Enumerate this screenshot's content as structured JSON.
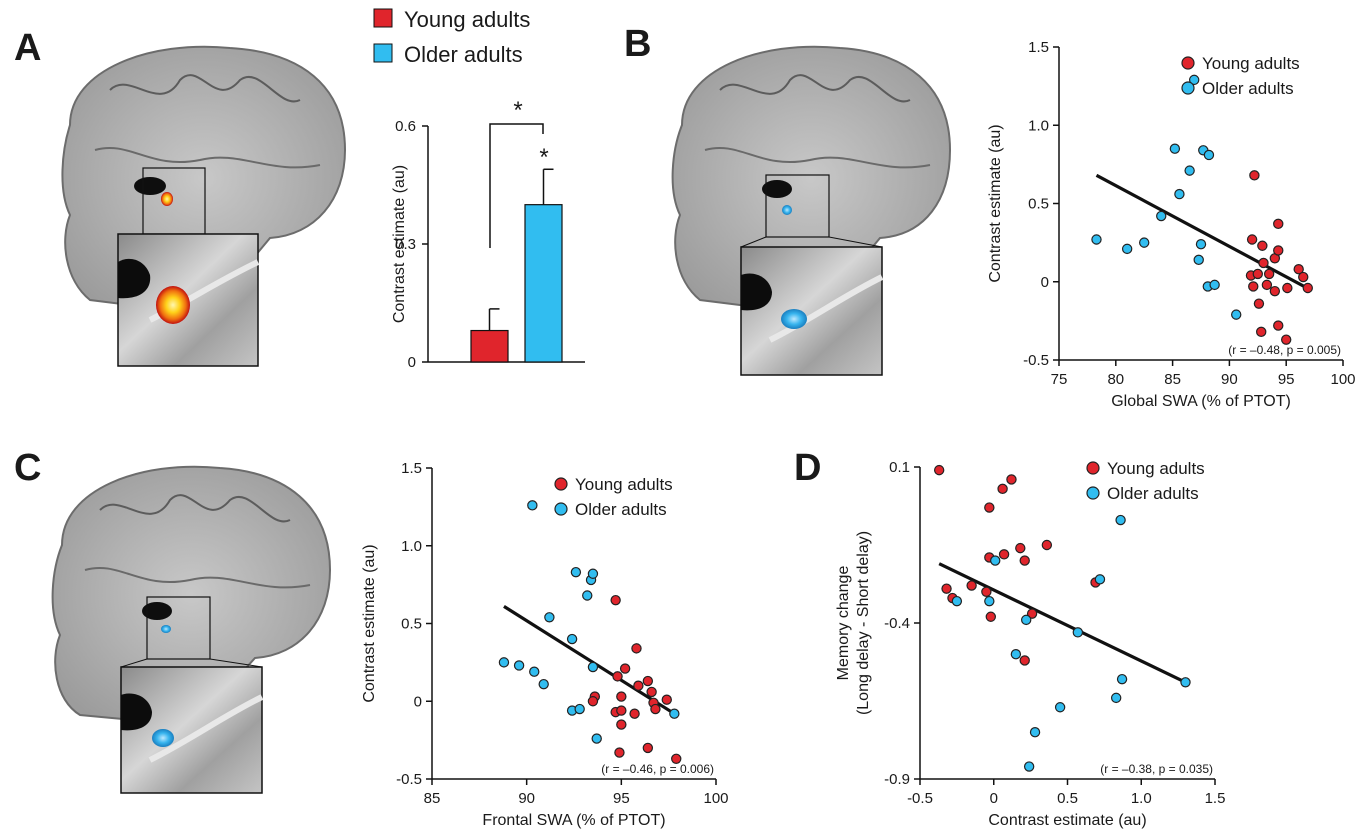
{
  "panels": [
    "A",
    "B",
    "C",
    "D"
  ],
  "legend": {
    "young": "Young adults",
    "older": "Older adults"
  },
  "colors": {
    "young": "#e0252c",
    "older": "#31bdf0",
    "line": "#111111",
    "blob_hot": "#ffd21a",
    "blob_blue": "#37b4ee"
  },
  "chart_data": [
    {
      "id": "A",
      "type": "bar",
      "categories": [
        "Young adults",
        "Older adults"
      ],
      "values": [
        0.08,
        0.4
      ],
      "errors": [
        0.055,
        0.09
      ],
      "ylabel": "Contrast estimate (au)",
      "ylim": [
        0,
        0.6
      ],
      "yticks": [
        "0",
        "0.3",
        "0.6"
      ],
      "yticks_num": [
        0,
        0.3,
        0.6
      ],
      "significance": [
        "*",
        "*"
      ]
    },
    {
      "id": "B",
      "type": "scatter",
      "xlabel": "Global SWA (% of PTOT)",
      "ylabel": "Contrast estimate (au)",
      "xlim": [
        75,
        100
      ],
      "ylim": [
        -0.5,
        1.5
      ],
      "xticks": [
        "75",
        "80",
        "85",
        "90",
        "95",
        "100"
      ],
      "xticks_num": [
        75,
        80,
        85,
        90,
        95,
        100
      ],
      "yticks": [
        "-0.5",
        "0",
        "0.5",
        "1.0",
        "1.5"
      ],
      "yticks_num": [
        -0.5,
        0,
        0.5,
        1.0,
        1.5
      ],
      "stat": "(r = –0.48, p = 0.005)",
      "fit": [
        [
          78.3,
          0.68
        ],
        [
          97.1,
          -0.05
        ]
      ],
      "series": [
        {
          "name": "Young adults",
          "points": [
            [
              92.2,
              0.68
            ],
            [
              92,
              0.27
            ],
            [
              92.9,
              0.23
            ],
            [
              94.3,
              0.37
            ],
            [
              91.9,
              0.04
            ],
            [
              93,
              0.12
            ],
            [
              94,
              0.15
            ],
            [
              92.5,
              0.05
            ],
            [
              93.5,
              0.05
            ],
            [
              92.1,
              -0.03
            ],
            [
              92.6,
              -0.14
            ],
            [
              93.3,
              -0.02
            ],
            [
              94,
              -0.06
            ],
            [
              95.1,
              -0.04
            ],
            [
              96.1,
              0.08
            ],
            [
              96.5,
              0.03
            ],
            [
              96.9,
              -0.04
            ],
            [
              94.3,
              -0.28
            ],
            [
              95,
              -0.37
            ],
            [
              92.8,
              -0.32
            ],
            [
              94.3,
              0.2
            ]
          ]
        },
        {
          "name": "Older adults",
          "points": [
            [
              78.3,
              0.27
            ],
            [
              81,
              0.21
            ],
            [
              82.5,
              0.25
            ],
            [
              84,
              0.42
            ],
            [
              85.2,
              0.85
            ],
            [
              85.6,
              0.56
            ],
            [
              86.5,
              0.71
            ],
            [
              86.9,
              1.29
            ],
            [
              87.7,
              0.84
            ],
            [
              88.2,
              0.81
            ],
            [
              87.3,
              0.14
            ],
            [
              87.5,
              0.24
            ],
            [
              88.1,
              -0.03
            ],
            [
              88.7,
              -0.02
            ],
            [
              90.6,
              -0.21
            ]
          ]
        }
      ]
    },
    {
      "id": "C",
      "type": "scatter",
      "xlabel": "Frontal SWA (% of PTOT)",
      "ylabel": "Contrast estimate (au)",
      "xlim": [
        85,
        100
      ],
      "ylim": [
        -0.5,
        1.5
      ],
      "xticks": [
        "85",
        "90",
        "95",
        "100"
      ],
      "xticks_num": [
        85,
        90,
        95,
        100
      ],
      "yticks": [
        "-0.5",
        "0",
        "0.5",
        "1.0",
        "1.5"
      ],
      "yticks_num": [
        -0.5,
        0,
        0.5,
        1.0,
        1.5
      ],
      "stat": "(r = –0.46, p = 0.006)",
      "fit": [
        [
          88.8,
          0.61
        ],
        [
          97.8,
          -0.08
        ]
      ],
      "series": [
        {
          "name": "Young adults",
          "points": [
            [
              94.7,
              0.65
            ],
            [
              95.8,
              0.34
            ],
            [
              95.2,
              0.21
            ],
            [
              94.8,
              0.16
            ],
            [
              95.9,
              0.1
            ],
            [
              96.4,
              0.13
            ],
            [
              96.6,
              0.06
            ],
            [
              97.4,
              0.01
            ],
            [
              95,
              0.03
            ],
            [
              93.6,
              0.03
            ],
            [
              94.7,
              -0.07
            ],
            [
              95,
              -0.06
            ],
            [
              95.7,
              -0.08
            ],
            [
              96.7,
              -0.01
            ],
            [
              95,
              -0.15
            ],
            [
              94.9,
              -0.33
            ],
            [
              96.4,
              -0.3
            ],
            [
              97.9,
              -0.37
            ],
            [
              93.5,
              0.0
            ],
            [
              96.8,
              -0.05
            ]
          ]
        },
        {
          "name": "Older adults",
          "points": [
            [
              90.3,
              1.26
            ],
            [
              92.6,
              0.83
            ],
            [
              93.4,
              0.78
            ],
            [
              93.5,
              0.82
            ],
            [
              93.2,
              0.68
            ],
            [
              91.2,
              0.54
            ],
            [
              92.4,
              0.4
            ],
            [
              88.8,
              0.25
            ],
            [
              89.6,
              0.23
            ],
            [
              90.4,
              0.19
            ],
            [
              90.9,
              0.11
            ],
            [
              93.5,
              0.22
            ],
            [
              92.4,
              -0.06
            ],
            [
              92.8,
              -0.05
            ],
            [
              93.7,
              -0.24
            ],
            [
              97.8,
              -0.08
            ]
          ]
        }
      ]
    },
    {
      "id": "D",
      "type": "scatter",
      "xlabel": "Contrast estimate (au)",
      "ylabel": [
        "Memory change",
        "(Long delay - Short delay)"
      ],
      "xlim": [
        -0.5,
        1.5
      ],
      "ylim": [
        -0.9,
        0.1
      ],
      "xticks": [
        "-0.5",
        "0",
        "0.5",
        "1.0",
        "1.5"
      ],
      "xticks_num": [
        -0.5,
        0,
        0.5,
        1.0,
        1.5
      ],
      "yticks": [
        "-0.9",
        "-0.4",
        "0.1"
      ],
      "yticks_num": [
        -0.9,
        -0.4,
        0.1
      ],
      "stat": "(r = –0.38, p = 0.035)",
      "fit": [
        [
          -0.37,
          -0.21
        ],
        [
          1.3,
          -0.59
        ]
      ],
      "series": [
        {
          "name": "Young adults",
          "points": [
            [
              -0.37,
              0.09
            ],
            [
              0.12,
              0.06
            ],
            [
              0.06,
              0.03
            ],
            [
              -0.03,
              -0.03
            ],
            [
              -0.03,
              -0.19
            ],
            [
              0.07,
              -0.18
            ],
            [
              0.18,
              -0.16
            ],
            [
              0.21,
              -0.2
            ],
            [
              0.36,
              -0.15
            ],
            [
              0.69,
              -0.27
            ],
            [
              -0.32,
              -0.29
            ],
            [
              -0.28,
              -0.32
            ],
            [
              -0.15,
              -0.28
            ],
            [
              -0.05,
              -0.3
            ],
            [
              -0.02,
              -0.38
            ],
            [
              0.26,
              -0.37
            ],
            [
              0.21,
              -0.52
            ]
          ]
        },
        {
          "name": "Older adults",
          "points": [
            [
              0.86,
              -0.07
            ],
            [
              0.72,
              -0.26
            ],
            [
              -0.25,
              -0.33
            ],
            [
              -0.03,
              -0.33
            ],
            [
              0.01,
              -0.2
            ],
            [
              0.22,
              -0.39
            ],
            [
              0.57,
              -0.43
            ],
            [
              0.15,
              -0.5
            ],
            [
              0.45,
              -0.67
            ],
            [
              0.87,
              -0.58
            ],
            [
              0.83,
              -0.64
            ],
            [
              1.3,
              -0.59
            ],
            [
              0.28,
              -0.75
            ],
            [
              0.24,
              -0.86
            ]
          ]
        }
      ]
    }
  ]
}
